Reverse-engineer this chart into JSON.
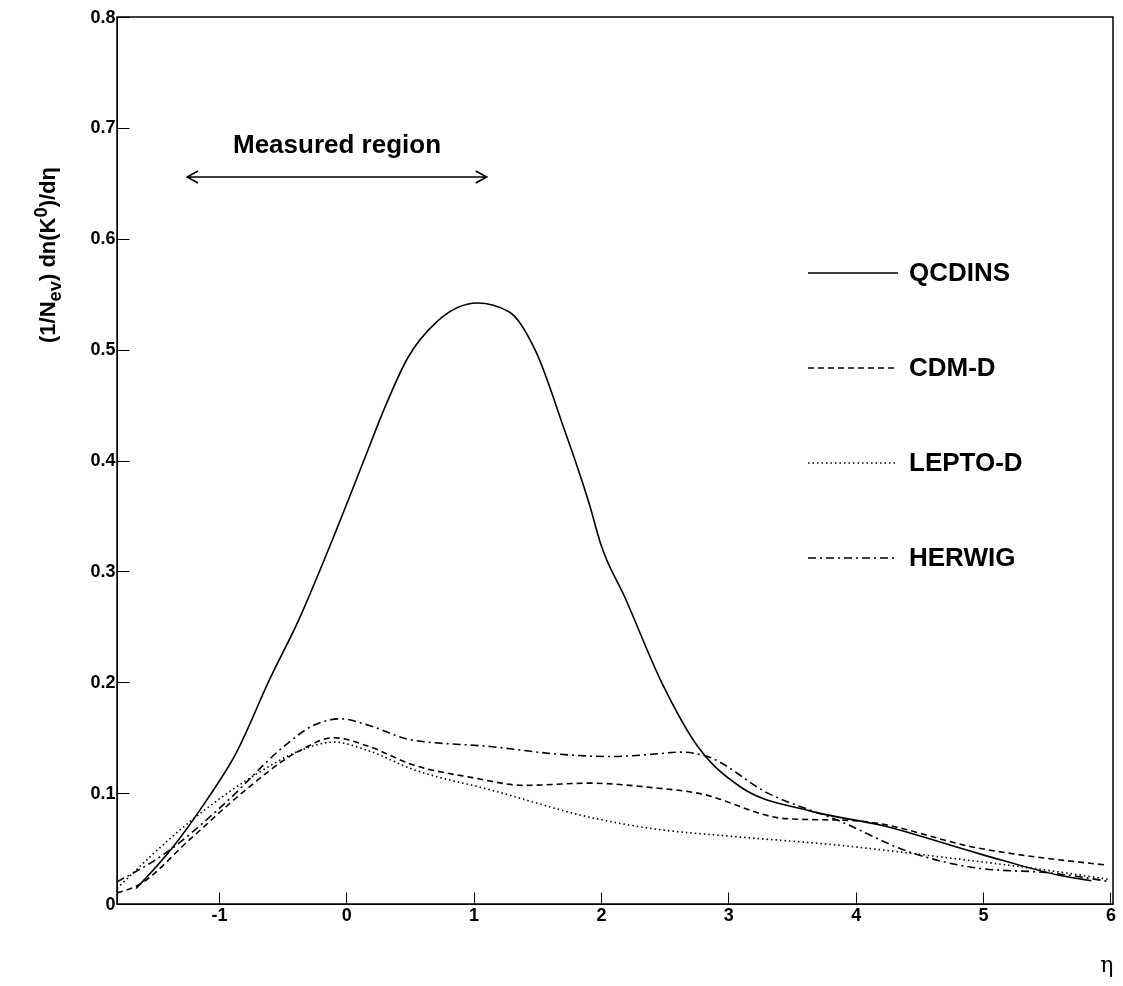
{
  "chart_data": {
    "type": "line",
    "xlabel": "η",
    "ylabel": "(1/N$_{ev}$) dn(K$^{0}$)/dη",
    "xlim": [
      -1.8,
      6.02
    ],
    "ylim": [
      0,
      0.8
    ],
    "xticks": [
      -1,
      0,
      1,
      2,
      3,
      4,
      5,
      6
    ],
    "yticks": [
      0,
      0.1,
      0.2,
      0.3,
      0.4,
      0.5,
      0.6,
      0.7,
      0.8
    ],
    "legend": "top right",
    "grid": false,
    "annotations": [
      "Measured region"
    ],
    "series": [
      {
        "name": "QCDINS",
        "color": "#000000",
        "line_style": "solid",
        "x": [
          -1.65,
          -1.37,
          -1.1,
          -0.87,
          -0.6,
          -0.37,
          -0.1,
          0.145,
          0.3,
          0.48,
          0.71,
          1.03,
          1.28,
          1.49,
          1.7,
          1.91,
          2.0,
          2.19,
          2.48,
          2.76,
          3.09,
          3.64,
          4.2,
          4.98,
          5.64,
          5.85
        ],
        "values": [
          0.014,
          0.05,
          0.093,
          0.135,
          0.203,
          0.257,
          0.331,
          0.402,
          0.447,
          0.492,
          0.525,
          0.542,
          0.534,
          0.498,
          0.432,
          0.36,
          0.324,
          0.276,
          0.199,
          0.142,
          0.106,
          0.084,
          0.071,
          0.045,
          0.025,
          0.021
        ]
      },
      {
        "name": "CDM-D",
        "color": "#000000",
        "line_style": "dashed",
        "x": [
          -1.8,
          -1.65,
          -1.23,
          -0.82,
          -0.37,
          -0.1,
          0.18,
          0.51,
          0.99,
          1.4,
          1.91,
          2.4,
          2.76,
          3.45,
          4.01,
          4.98,
          5.98
        ],
        "values": [
          0.01,
          0.016,
          0.058,
          0.1,
          0.138,
          0.15,
          0.142,
          0.126,
          0.114,
          0.107,
          0.109,
          0.105,
          0.1,
          0.077,
          0.075,
          0.05,
          0.035
        ]
      },
      {
        "name": "LEPTO-D",
        "color": "#000000",
        "line_style": "dotted",
        "x": [
          -1.8,
          -1.23,
          -0.68,
          -0.37,
          -0.1,
          0.18,
          0.51,
          1.13,
          1.96,
          2.4,
          3.03,
          3.87,
          4.7,
          5.53,
          6.0
        ],
        "values": [
          0.014,
          0.074,
          0.119,
          0.138,
          0.146,
          0.138,
          0.122,
          0.103,
          0.077,
          0.068,
          0.061,
          0.053,
          0.042,
          0.03,
          0.022
        ]
      },
      {
        "name": "HERWIG",
        "color": "#000000",
        "line_style": "dashdot",
        "x": [
          -1.8,
          -1.43,
          -0.96,
          -0.49,
          -0.26,
          -0.04,
          0.18,
          0.51,
          1.13,
          1.68,
          2.07,
          2.4,
          2.62,
          2.81,
          3.31,
          3.87,
          4.42,
          4.98,
          5.53,
          6.0
        ],
        "values": [
          0.02,
          0.045,
          0.09,
          0.142,
          0.161,
          0.167,
          0.161,
          0.148,
          0.142,
          0.135,
          0.133,
          0.135,
          0.137,
          0.134,
          0.1,
          0.075,
          0.047,
          0.032,
          0.028,
          0.02
        ]
      }
    ]
  }
}
